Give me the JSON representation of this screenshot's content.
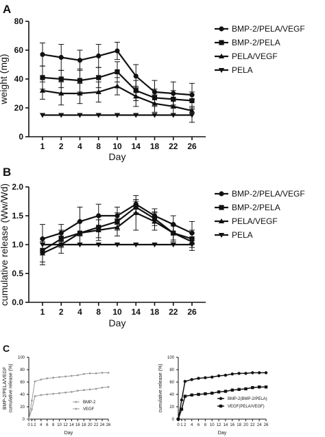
{
  "chart_data": [
    {
      "panel": "A",
      "type": "line",
      "xlabel": "Day",
      "ylabel": "weight (mg)",
      "categories": [
        "1",
        "2",
        "4",
        "8",
        "10",
        "14",
        "18",
        "22",
        "26"
      ],
      "ylim": [
        0,
        80
      ],
      "yticks": [
        0,
        20,
        40,
        60,
        80
      ],
      "legend_position": "right",
      "series": [
        {
          "name": "BMP-2/PELA/VEGF",
          "marker": "circle",
          "values": [
            57,
            55,
            53,
            56,
            59.5,
            42,
            31,
            30,
            29
          ],
          "errors": [
            8,
            9,
            7,
            8,
            6,
            8,
            8,
            8,
            8
          ]
        },
        {
          "name": "BMP-2/PELA",
          "marker": "square",
          "values": [
            41,
            40,
            39,
            41,
            45,
            32,
            27,
            26,
            25
          ],
          "errors": [
            8,
            6,
            8,
            7,
            7,
            7,
            6,
            6,
            6
          ]
        },
        {
          "name": "PELA/VEGF",
          "marker": "triangle-up",
          "values": [
            32,
            30,
            30,
            31,
            35,
            28,
            23,
            21,
            18
          ],
          "errors": [
            6,
            8,
            7,
            7,
            6,
            7,
            6,
            6,
            8
          ]
        },
        {
          "name": "PELA",
          "marker": "triangle-down",
          "values": [
            15,
            15,
            15,
            15,
            15,
            15,
            15,
            15,
            15
          ],
          "errors": [
            0,
            0,
            0,
            0,
            0,
            0,
            0,
            0,
            5
          ]
        }
      ]
    },
    {
      "panel": "B",
      "type": "line",
      "xlabel": "Day",
      "ylabel": "cumulative release (Ww/Wd)",
      "categories": [
        "1",
        "2",
        "4",
        "8",
        "10",
        "14",
        "18",
        "22",
        "26"
      ],
      "ylim": [
        0,
        2
      ],
      "yticks": [
        "0.0",
        "0.5",
        "1.0",
        "1.5",
        "2.0"
      ],
      "legend_position": "right",
      "series": [
        {
          "name": "BMP-2/PELA/VEGF",
          "marker": "circle",
          "values": [
            1.1,
            1.2,
            1.4,
            1.5,
            1.5,
            1.7,
            1.5,
            1.35,
            1.2
          ],
          "errors": [
            0.25,
            0.15,
            0.25,
            0.2,
            0.15,
            0.08,
            0.12,
            0.15,
            0.2
          ]
        },
        {
          "name": "BMP-2/PELA",
          "marker": "square",
          "values": [
            0.9,
            1.1,
            1.2,
            1.3,
            1.4,
            1.65,
            1.45,
            1.2,
            1.1
          ],
          "errors": [
            0.2,
            0.15,
            0.2,
            0.18,
            0.15,
            0.1,
            0.12,
            0.15,
            0.15
          ]
        },
        {
          "name": "PELA/VEGF",
          "marker": "triangle-up",
          "values": [
            0.85,
            1.0,
            1.2,
            1.25,
            1.3,
            1.55,
            1.4,
            1.2,
            1.05
          ],
          "errors": [
            0.2,
            0.15,
            0.2,
            0.18,
            0.15,
            0.3,
            0.15,
            0.12,
            0.15
          ]
        },
        {
          "name": "PELA",
          "marker": "triangle-down",
          "values": [
            1.0,
            1.0,
            1.0,
            1.0,
            1.0,
            1.0,
            1.0,
            1.0,
            1.0
          ],
          "errors": [
            0,
            0,
            0,
            0,
            0,
            0,
            0,
            0,
            0
          ]
        }
      ]
    },
    {
      "panel": "C",
      "type": "line",
      "xlabel": "Day",
      "ylabel": "BMP-2/PELA/VEGF cumulative release (%)",
      "x": [
        0,
        1,
        2,
        4,
        6,
        8,
        10,
        12,
        14,
        16,
        18,
        20,
        22,
        24,
        26
      ],
      "ylim": [
        0,
        100
      ],
      "yticks": [
        0,
        20,
        40,
        60,
        80,
        100
      ],
      "xticks": [
        0,
        1,
        2,
        4,
        6,
        8,
        10,
        12,
        14,
        16,
        18,
        20,
        22,
        24,
        26
      ],
      "legend_position": "bottom-right",
      "series": [
        {
          "name": "BMP-2",
          "marker": "dot",
          "values": [
            0,
            30,
            61,
            64,
            66,
            67,
            68,
            69,
            70,
            71,
            73,
            74,
            74,
            75,
            75
          ]
        },
        {
          "name": "VEGF",
          "marker": "dot",
          "values": [
            0,
            16,
            37,
            39,
            40,
            41,
            42,
            43,
            44,
            46,
            47,
            48,
            49,
            51,
            52
          ]
        }
      ]
    },
    {
      "panel": "",
      "type": "line",
      "xlabel": "Day",
      "ylabel": "cumulative release (%)",
      "x": [
        0,
        1,
        2,
        4,
        6,
        8,
        10,
        12,
        14,
        16,
        18,
        20,
        22,
        24,
        26
      ],
      "ylim": [
        0,
        100
      ],
      "yticks": [
        0,
        20,
        40,
        60,
        80,
        100
      ],
      "xticks": [
        0,
        1,
        2,
        4,
        6,
        8,
        10,
        12,
        14,
        16,
        18,
        20,
        22,
        24,
        26
      ],
      "legend_position": "bottom-right",
      "series": [
        {
          "name": "BMP-2(BMP-2/PELA)",
          "marker": "circle",
          "values": [
            0,
            31,
            61,
            64,
            66,
            67,
            68,
            70,
            71,
            73,
            74,
            74,
            75,
            75,
            75
          ]
        },
        {
          "name": "VEGF(PELA/VEGF)",
          "marker": "square",
          "values": [
            0,
            16,
            37,
            39,
            40,
            41,
            42,
            44,
            45,
            47,
            48,
            49,
            51,
            52,
            52
          ]
        }
      ]
    }
  ]
}
